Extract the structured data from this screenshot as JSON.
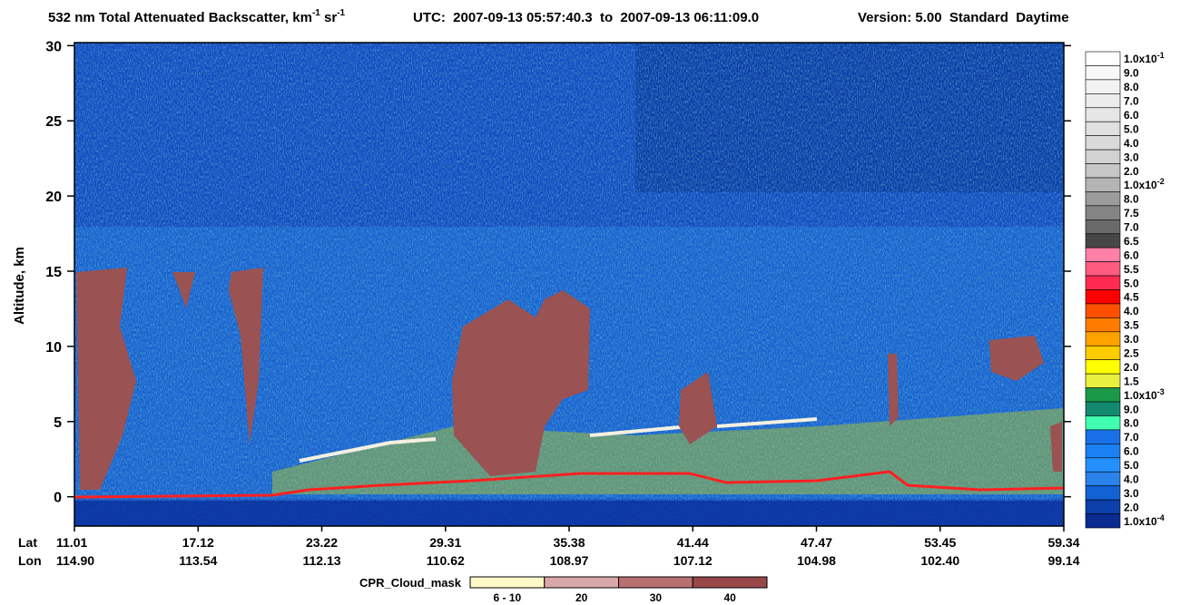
{
  "chart_data": {
    "type": "curtain",
    "title": [
      "532 nm Total Attenuated Backscatter, km",
      "-1",
      " sr",
      "-1"
    ],
    "utc": "UTC:  2007-09-13 05:57:40.3  to  2007-09-13 06:11:09.0",
    "version": "Version: 5.00  Standard  Daytime",
    "ylabel": "Altitude, km",
    "ylim": [
      -1.95,
      30.2
    ],
    "yticks": [
      0,
      5,
      10,
      15,
      20,
      25,
      30
    ],
    "row_names": [
      "Lat",
      "Lon"
    ],
    "lat": [
      "11.01",
      "17.12",
      "23.22",
      "29.31",
      "35.38",
      "41.44",
      "47.47",
      "53.45",
      "59.34"
    ],
    "lon": [
      "114.90",
      "113.54",
      "112.13",
      "110.62",
      "108.97",
      "107.12",
      "104.98",
      "102.40",
      "99.14"
    ],
    "colorbar": [
      {
        "label": "1.0x10",
        "sup": "-1",
        "color": "#ffffff"
      },
      {
        "label": "9.0",
        "color": "#f8f8f8"
      },
      {
        "label": "8.0",
        "color": "#f2f2f2"
      },
      {
        "label": "7.0",
        "color": "#ececec"
      },
      {
        "label": "6.0",
        "color": "#e6e6e6"
      },
      {
        "label": "5.0",
        "color": "#e0e0e0"
      },
      {
        "label": "4.0",
        "color": "#dadada"
      },
      {
        "label": "3.0",
        "color": "#d2d2d2"
      },
      {
        "label": "2.0",
        "color": "#c6c6c6"
      },
      {
        "label": "1.0x10",
        "sup": "-2",
        "color": "#b4b4b4"
      },
      {
        "label": "8.0",
        "color": "#9c9c9c"
      },
      {
        "label": "7.5",
        "color": "#848484"
      },
      {
        "label": "7.0",
        "color": "#6a6a6a"
      },
      {
        "label": "6.5",
        "color": "#464646"
      },
      {
        "label": "6.0",
        "color": "#ff80a8"
      },
      {
        "label": "5.5",
        "color": "#ff5a80"
      },
      {
        "label": "5.0",
        "color": "#ff2a50"
      },
      {
        "label": "4.5",
        "color": "#ff0000"
      },
      {
        "label": "4.0",
        "color": "#ff5000"
      },
      {
        "label": "3.5",
        "color": "#ff7c00"
      },
      {
        "label": "3.0",
        "color": "#ffa200"
      },
      {
        "label": "2.5",
        "color": "#ffcc00"
      },
      {
        "label": "2.0",
        "color": "#ffff00"
      },
      {
        "label": "1.5",
        "color": "#e8f040"
      },
      {
        "label": "1.0x10",
        "sup": "-3",
        "color": "#1a9a48"
      },
      {
        "label": "9.0",
        "color": "#128a70"
      },
      {
        "label": "8.0",
        "color": "#40ffb0"
      },
      {
        "label": "7.0",
        "color": "#1a70e8"
      },
      {
        "label": "6.0",
        "color": "#1a80f4"
      },
      {
        "label": "5.0",
        "color": "#2490ff"
      },
      {
        "label": "4.0",
        "color": "#2a82ea"
      },
      {
        "label": "3.0",
        "color": "#1262d4"
      },
      {
        "label": "2.0",
        "color": "#0c40aa"
      },
      {
        "label": "1.0x10",
        "sup": "-4",
        "color": "#0a2a90"
      }
    ],
    "cpr_title": "CPR_Cloud_mask",
    "cpr": [
      {
        "label": "6 - 10",
        "color": "#fffac8"
      },
      {
        "label": "20",
        "color": "#d8a8a8"
      },
      {
        "label": "30",
        "color": "#b87070"
      },
      {
        "label": "40",
        "color": "#984848"
      }
    ]
  }
}
